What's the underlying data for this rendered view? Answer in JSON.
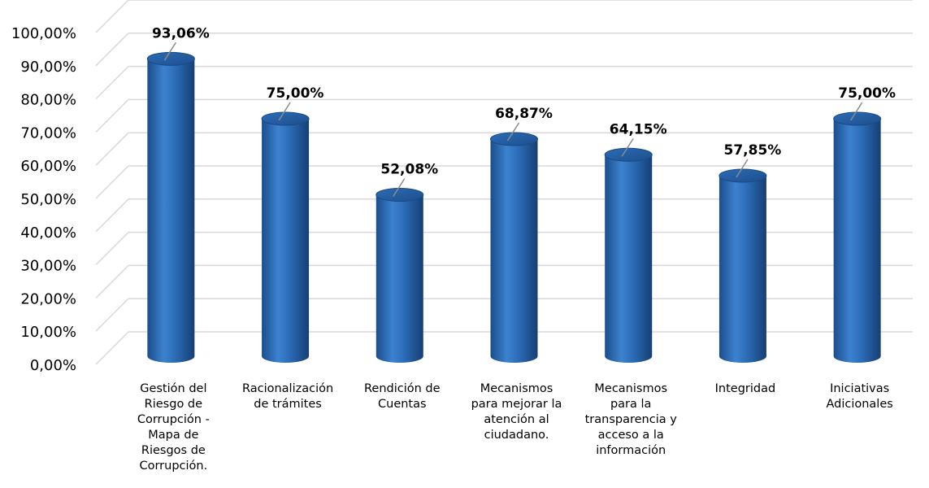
{
  "chart_data": {
    "type": "bar",
    "categories": [
      [
        "Gestión del",
        "Riesgo de",
        "Corrupción -",
        "Mapa de",
        "Riesgos de",
        "Corrupción."
      ],
      [
        "Racionalización",
        "de trámites"
      ],
      [
        "Rendición de",
        "Cuentas"
      ],
      [
        "Mecanismos",
        "para mejorar la",
        "atención al",
        "ciudadano."
      ],
      [
        "Mecanismos",
        "para la",
        "transparencia y",
        "acceso a la",
        "información"
      ],
      [
        "Integridad"
      ],
      [
        "Iniciativas",
        "Adicionales"
      ]
    ],
    "values": [
      93.06,
      75.0,
      52.08,
      68.87,
      64.15,
      57.85,
      75.0
    ],
    "data_labels": [
      "93,06%",
      "75,00%",
      "52,08%",
      "68,87%",
      "64,15%",
      "57,85%",
      "75,00%"
    ],
    "y_ticks": [
      "0,00%",
      "10,00%",
      "20,00%",
      "30,00%",
      "40,00%",
      "50,00%",
      "60,00%",
      "70,00%",
      "80,00%",
      "90,00%",
      "100,00%"
    ],
    "ylim": [
      0,
      100
    ],
    "grid": true,
    "bar_color": "#2a6cb8",
    "grid_color": "#d9d9d9"
  }
}
